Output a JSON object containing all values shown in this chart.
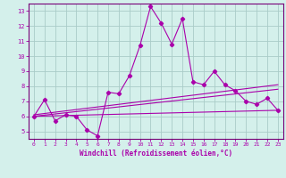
{
  "xlabel": "Windchill (Refroidissement éolien,°C)",
  "background_color": "#d4f0eb",
  "grid_color": "#aaccc8",
  "line_color": "#aa00aa",
  "spine_color": "#770077",
  "xlim": [
    -0.5,
    23.5
  ],
  "ylim": [
    4.5,
    13.5
  ],
  "xticks": [
    0,
    1,
    2,
    3,
    4,
    5,
    6,
    7,
    8,
    9,
    10,
    11,
    12,
    13,
    14,
    15,
    16,
    17,
    18,
    19,
    20,
    21,
    22,
    23
  ],
  "yticks": [
    5,
    6,
    7,
    8,
    9,
    10,
    11,
    12,
    13
  ],
  "series1_x": [
    0,
    1,
    2,
    3,
    4,
    5,
    6,
    7,
    8,
    9,
    10,
    11,
    12,
    13,
    14,
    15,
    16,
    17,
    18,
    19,
    20,
    21,
    22,
    23
  ],
  "series1_y": [
    6.0,
    7.1,
    5.7,
    6.1,
    6.0,
    5.1,
    4.7,
    7.6,
    7.5,
    8.7,
    10.7,
    13.3,
    12.2,
    10.8,
    12.5,
    8.3,
    8.1,
    9.0,
    8.1,
    7.7,
    7.0,
    6.8,
    7.2,
    6.4
  ],
  "series2_x": [
    0,
    23
  ],
  "series2_y": [
    6.0,
    6.4
  ],
  "series3_x": [
    0,
    23
  ],
  "series3_y": [
    6.1,
    8.1
  ],
  "series4_x": [
    0,
    23
  ],
  "series4_y": [
    6.0,
    7.8
  ]
}
